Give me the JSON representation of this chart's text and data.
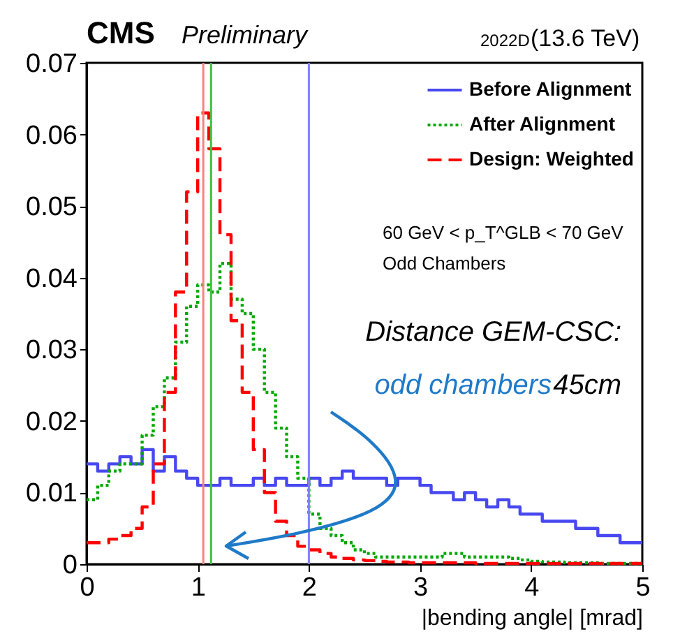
{
  "chart_data": {
    "type": "histogram",
    "xlabel": "|bending angle| [mrad]",
    "bins": [
      0,
      0.1,
      0.2,
      0.3,
      0.4,
      0.5,
      0.6,
      0.7,
      0.8,
      0.9,
      1.0,
      1.1,
      1.2,
      1.3,
      1.4,
      1.5,
      1.6,
      1.7,
      1.8,
      1.9,
      2.0,
      2.1,
      2.2,
      2.3,
      2.4,
      2.5,
      2.6,
      2.7,
      2.8,
      2.9,
      3.0,
      3.1,
      3.2,
      3.3,
      3.4,
      3.5,
      3.6,
      3.7,
      3.8,
      3.9,
      4.0,
      4.1,
      4.2,
      4.3,
      4.4,
      4.5,
      4.6,
      4.7,
      4.8,
      4.9,
      5.0
    ],
    "series": [
      {
        "name": "Before Alignment",
        "color": "#4848f0",
        "line_style": "solid",
        "values": [
          0.014,
          0.013,
          0.014,
          0.015,
          0.014,
          0.016,
          0.013,
          0.015,
          0.013,
          0.012,
          0.011,
          0.011,
          0.012,
          0.011,
          0.011,
          0.012,
          0.011,
          0.012,
          0.011,
          0.011,
          0.012,
          0.011,
          0.012,
          0.013,
          0.012,
          0.012,
          0.012,
          0.011,
          0.012,
          0.012,
          0.011,
          0.01,
          0.01,
          0.009,
          0.01,
          0.009,
          0.008,
          0.009,
          0.008,
          0.007,
          0.007,
          0.006,
          0.006,
          0.006,
          0.005,
          0.005,
          0.004,
          0.004,
          0.003,
          0.003
        ]
      },
      {
        "name": "After Alignment",
        "color": "#00a800",
        "line_style": "dotted",
        "values": [
          0.009,
          0.011,
          0.013,
          0.014,
          0.014,
          0.018,
          0.022,
          0.026,
          0.031,
          0.036,
          0.039,
          0.038,
          0.042,
          0.037,
          0.035,
          0.03,
          0.024,
          0.019,
          0.015,
          0.012,
          0.007,
          0.005,
          0.004,
          0.003,
          0.002,
          0.0015,
          0.001,
          0.001,
          0.001,
          0.001,
          0.001,
          0.001,
          0.0015,
          0.0015,
          0.001,
          0.001,
          0.001,
          0.001,
          0.0008,
          0.0006,
          0.0004,
          0.0003,
          0.0003,
          0.0002,
          0.0002,
          0.0002,
          0.0001,
          0.0001,
          0.0001,
          0.0001
        ]
      },
      {
        "name": "Design: Weighted",
        "color": "#ff0000",
        "line_style": "dashed",
        "values": [
          0.003,
          0.003,
          0.0035,
          0.004,
          0.005,
          0.008,
          0.014,
          0.024,
          0.038,
          0.052,
          0.063,
          0.058,
          0.046,
          0.034,
          0.024,
          0.016,
          0.01,
          0.006,
          0.004,
          0.0025,
          0.002,
          0.0015,
          0.001,
          0.0008,
          0.0006,
          0.0005,
          0.0004,
          0.0003,
          0.0003,
          0.0002,
          0.0002,
          0.0002,
          0.0002,
          0.0002,
          0.0002,
          0.0001,
          0.0001,
          0.0001,
          0.0001,
          0.0001,
          0.0001,
          0.0001,
          0.0001,
          0.0001,
          0.0001,
          0.0001,
          0.0001,
          0.0001,
          0.0001,
          0.0001
        ]
      }
    ],
    "xlim": [
      0,
      5
    ],
    "xticks": [
      0,
      1,
      2,
      3,
      4,
      5
    ],
    "ylim": [
      0,
      0.07
    ],
    "yticks": [
      0,
      0.01,
      0.02,
      0.03,
      0.04,
      0.05,
      0.06,
      0.07
    ],
    "ref_lines": [
      {
        "axis": "x",
        "value": 1.05,
        "color": "#ff8080"
      },
      {
        "axis": "x",
        "value": 1.12,
        "color": "#40c040"
      },
      {
        "axis": "x",
        "value": 2.0,
        "color": "#8080ff"
      }
    ],
    "annotations": [
      "CMS",
      "Preliminary",
      "2022D",
      "(13.6 TeV)",
      "60 GeV < p_T^GLB < 70 GeV",
      "Odd Chambers",
      "Distance GEM-CSC:",
      "odd chambers",
      "45cm"
    ],
    "grid": false,
    "legend": "top right"
  }
}
